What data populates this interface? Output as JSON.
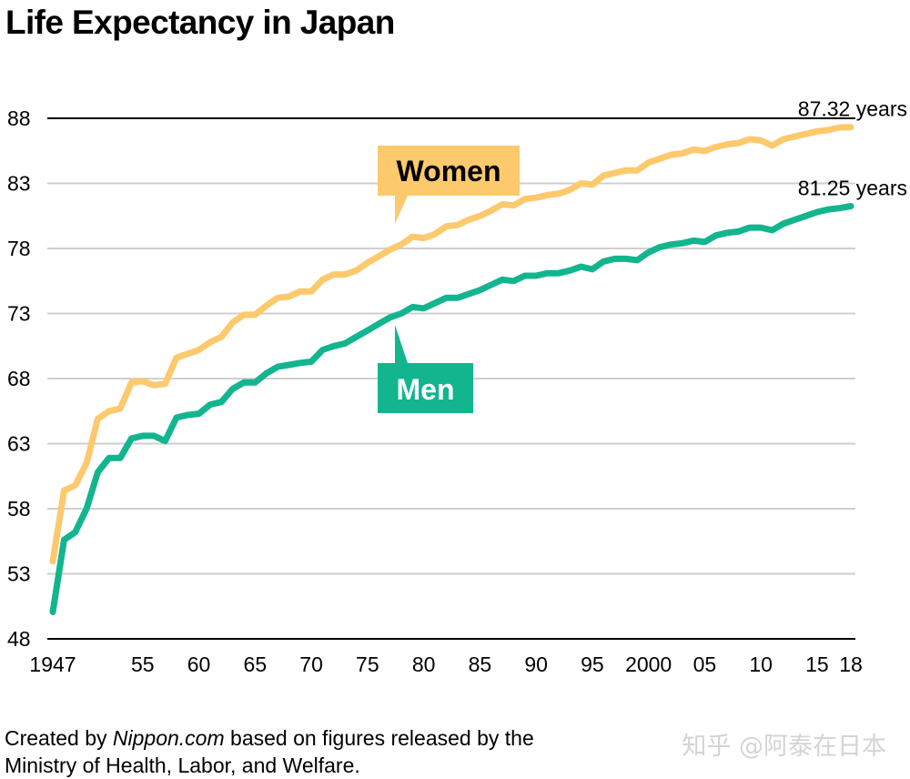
{
  "page": {
    "title": "Life Expectancy in Japan",
    "credit": {
      "prefix": "Created by ",
      "site": "Nippon.com",
      "rest": " based on figures released by the",
      "line2": "Ministry of Health, Labor, and Welfare."
    },
    "watermark": "知乎 @阿泰在日本"
  },
  "chart_data": {
    "type": "line",
    "title": "Life Expectancy in Japan",
    "xlabel": "",
    "ylabel": "",
    "xlim": [
      1947,
      2018
    ],
    "ylim": [
      48,
      88
    ],
    "y_ticks": [
      48,
      53,
      58,
      63,
      68,
      73,
      78,
      83,
      88
    ],
    "x_ticks": [
      {
        "value": 1947,
        "label": "1947"
      },
      {
        "value": 1955,
        "label": "55"
      },
      {
        "value": 1960,
        "label": "60"
      },
      {
        "value": 1965,
        "label": "65"
      },
      {
        "value": 1970,
        "label": "70"
      },
      {
        "value": 1975,
        "label": "75"
      },
      {
        "value": 1980,
        "label": "80"
      },
      {
        "value": 1985,
        "label": "85"
      },
      {
        "value": 1990,
        "label": "90"
      },
      {
        "value": 1995,
        "label": "95"
      },
      {
        "value": 2000,
        "label": "2000"
      },
      {
        "value": 2005,
        "label": "05"
      },
      {
        "value": 2010,
        "label": "10"
      },
      {
        "value": 2015,
        "label": "15"
      },
      {
        "value": 2018,
        "label": "18"
      }
    ],
    "grid": true,
    "x": [
      1947,
      1948,
      1949,
      1950,
      1951,
      1952,
      1953,
      1954,
      1955,
      1956,
      1957,
      1958,
      1959,
      1960,
      1961,
      1962,
      1963,
      1964,
      1965,
      1966,
      1967,
      1968,
      1969,
      1970,
      1971,
      1972,
      1973,
      1974,
      1975,
      1976,
      1977,
      1978,
      1979,
      1980,
      1981,
      1982,
      1983,
      1984,
      1985,
      1986,
      1987,
      1988,
      1989,
      1990,
      1991,
      1992,
      1993,
      1994,
      1995,
      1996,
      1997,
      1998,
      1999,
      2000,
      2001,
      2002,
      2003,
      2004,
      2005,
      2006,
      2007,
      2008,
      2009,
      2010,
      2011,
      2012,
      2013,
      2014,
      2015,
      2016,
      2017,
      2018
    ],
    "series": [
      {
        "name": "Women",
        "color": "#fcc96d",
        "end_label": "87.32 years",
        "values": [
          53.96,
          59.4,
          59.8,
          61.5,
          64.9,
          65.5,
          65.7,
          67.7,
          67.8,
          67.5,
          67.6,
          69.6,
          69.9,
          70.2,
          70.8,
          71.2,
          72.3,
          72.9,
          72.9,
          73.6,
          74.2,
          74.3,
          74.7,
          74.7,
          75.6,
          76.0,
          76.0,
          76.3,
          76.9,
          77.4,
          77.9,
          78.3,
          78.9,
          78.8,
          79.1,
          79.7,
          79.8,
          80.2,
          80.5,
          80.9,
          81.4,
          81.3,
          81.8,
          81.9,
          82.1,
          82.2,
          82.5,
          83.0,
          82.9,
          83.6,
          83.8,
          84.0,
          84.0,
          84.6,
          84.9,
          85.2,
          85.3,
          85.6,
          85.5,
          85.8,
          86.0,
          86.1,
          86.4,
          86.3,
          85.9,
          86.4,
          86.6,
          86.8,
          87.0,
          87.1,
          87.3,
          87.32
        ]
      },
      {
        "name": "Men",
        "color": "#13b58f",
        "end_label": "81.25 years",
        "values": [
          50.06,
          55.6,
          56.2,
          58.0,
          60.8,
          61.9,
          61.9,
          63.4,
          63.6,
          63.6,
          63.2,
          65.0,
          65.2,
          65.3,
          66.0,
          66.2,
          67.2,
          67.7,
          67.7,
          68.4,
          68.9,
          69.05,
          69.2,
          69.3,
          70.2,
          70.5,
          70.7,
          71.2,
          71.7,
          72.2,
          72.7,
          73.0,
          73.5,
          73.4,
          73.8,
          74.2,
          74.2,
          74.5,
          74.8,
          75.2,
          75.6,
          75.5,
          75.9,
          75.9,
          76.1,
          76.1,
          76.3,
          76.6,
          76.4,
          77.0,
          77.2,
          77.2,
          77.1,
          77.7,
          78.1,
          78.3,
          78.4,
          78.6,
          78.5,
          79.0,
          79.2,
          79.3,
          79.6,
          79.6,
          79.4,
          79.9,
          80.2,
          80.5,
          80.8,
          81.0,
          81.1,
          81.25
        ]
      }
    ],
    "callouts": [
      {
        "text": "Women",
        "color": "#fcc96d",
        "text_color": "#000000"
      },
      {
        "text": "Men",
        "color": "#13b58f",
        "text_color": "#ffffff"
      }
    ]
  }
}
